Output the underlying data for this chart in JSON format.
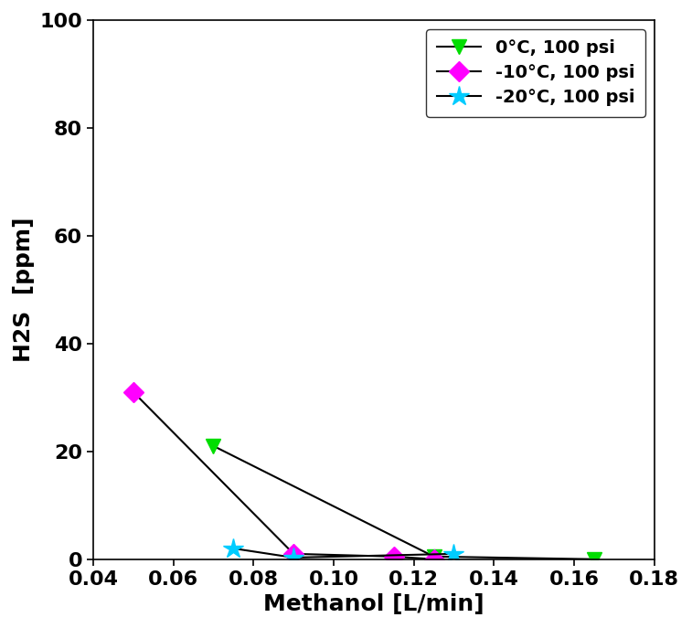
{
  "series": [
    {
      "label": "0°C, 100 psi",
      "x": [
        0.07,
        0.125,
        0.165
      ],
      "y": [
        21,
        0.5,
        0
      ],
      "color": "#00dd00",
      "marker": "v",
      "markersize": 11
    },
    {
      "label": "-10°C, 100 psi",
      "x": [
        0.05,
        0.09,
        0.115,
        0.125
      ],
      "y": [
        31,
        1,
        0.5,
        0
      ],
      "color": "#ff00ff",
      "marker": "D",
      "markersize": 11
    },
    {
      "label": "-20°C, 100 psi",
      "x": [
        0.075,
        0.09,
        0.13
      ],
      "y": [
        2,
        0.3,
        1
      ],
      "color": "#00ccff",
      "marker": "*",
      "markersize": 16
    }
  ],
  "xlabel": "Methanol [L/min]",
  "ylabel": "H2S  [ppm]",
  "xlim": [
    0.04,
    0.18
  ],
  "ylim": [
    0,
    100
  ],
  "xticks": [
    0.04,
    0.06,
    0.08,
    0.1,
    0.12,
    0.14,
    0.16,
    0.18
  ],
  "yticks": [
    0,
    20,
    40,
    60,
    80,
    100
  ],
  "legend_loc": "upper right",
  "line_color": "black",
  "line_width": 1.5,
  "tick_fontsize": 16,
  "label_fontsize": 18
}
